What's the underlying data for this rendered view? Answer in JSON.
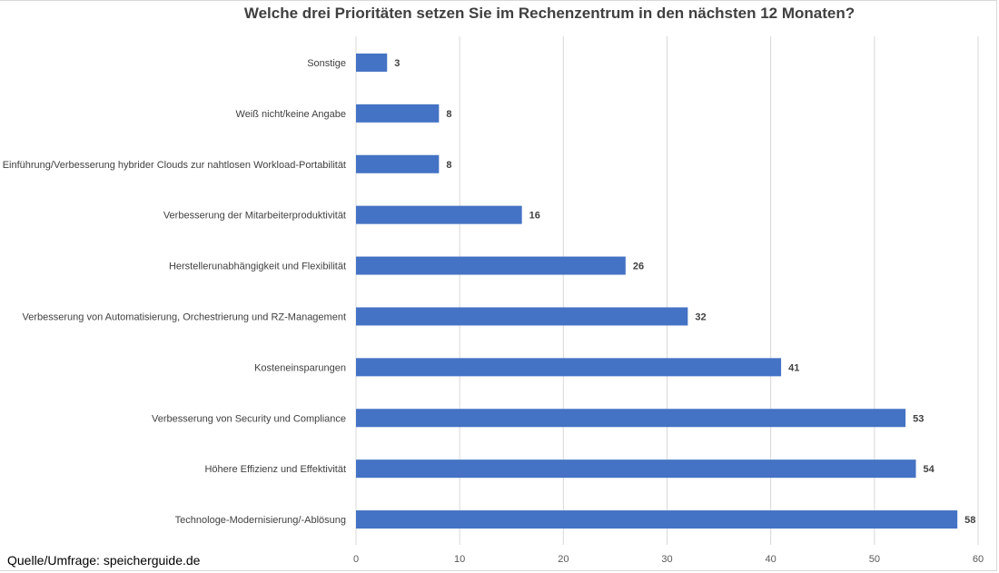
{
  "chart_data": {
    "type": "bar",
    "orientation": "horizontal",
    "title": "Welche drei Prioritäten setzen Sie im Rechenzentrum in den nächsten 12 Monaten?",
    "categories": [
      "Sonstige",
      "Weiß nicht/keine Angabe",
      "Einführung/Verbesserung hybrider Clouds zur nahtlosen Workload-Portabilität",
      "Verbesserung der Mitarbeiterproduktivität",
      "Herstellerunabhängigkeit und Flexibilität",
      "Verbesserung von Automatisierung, Orchestrierung und RZ-Management",
      "Kosteneinsparungen",
      "Verbesserung von Security und Compliance",
      "Höhere Effizienz und Effektivität",
      "Technologe-Modernisierung/-Ablösung"
    ],
    "values": [
      3,
      8,
      8,
      16,
      26,
      32,
      41,
      53,
      54,
      58
    ],
    "xlim": [
      0,
      60
    ],
    "xticks": [
      0,
      10,
      20,
      30,
      40,
      50,
      60
    ],
    "grid": true,
    "bar_color": "#4472c4"
  },
  "source": "Quelle/Umfrage: speicherguide.de"
}
